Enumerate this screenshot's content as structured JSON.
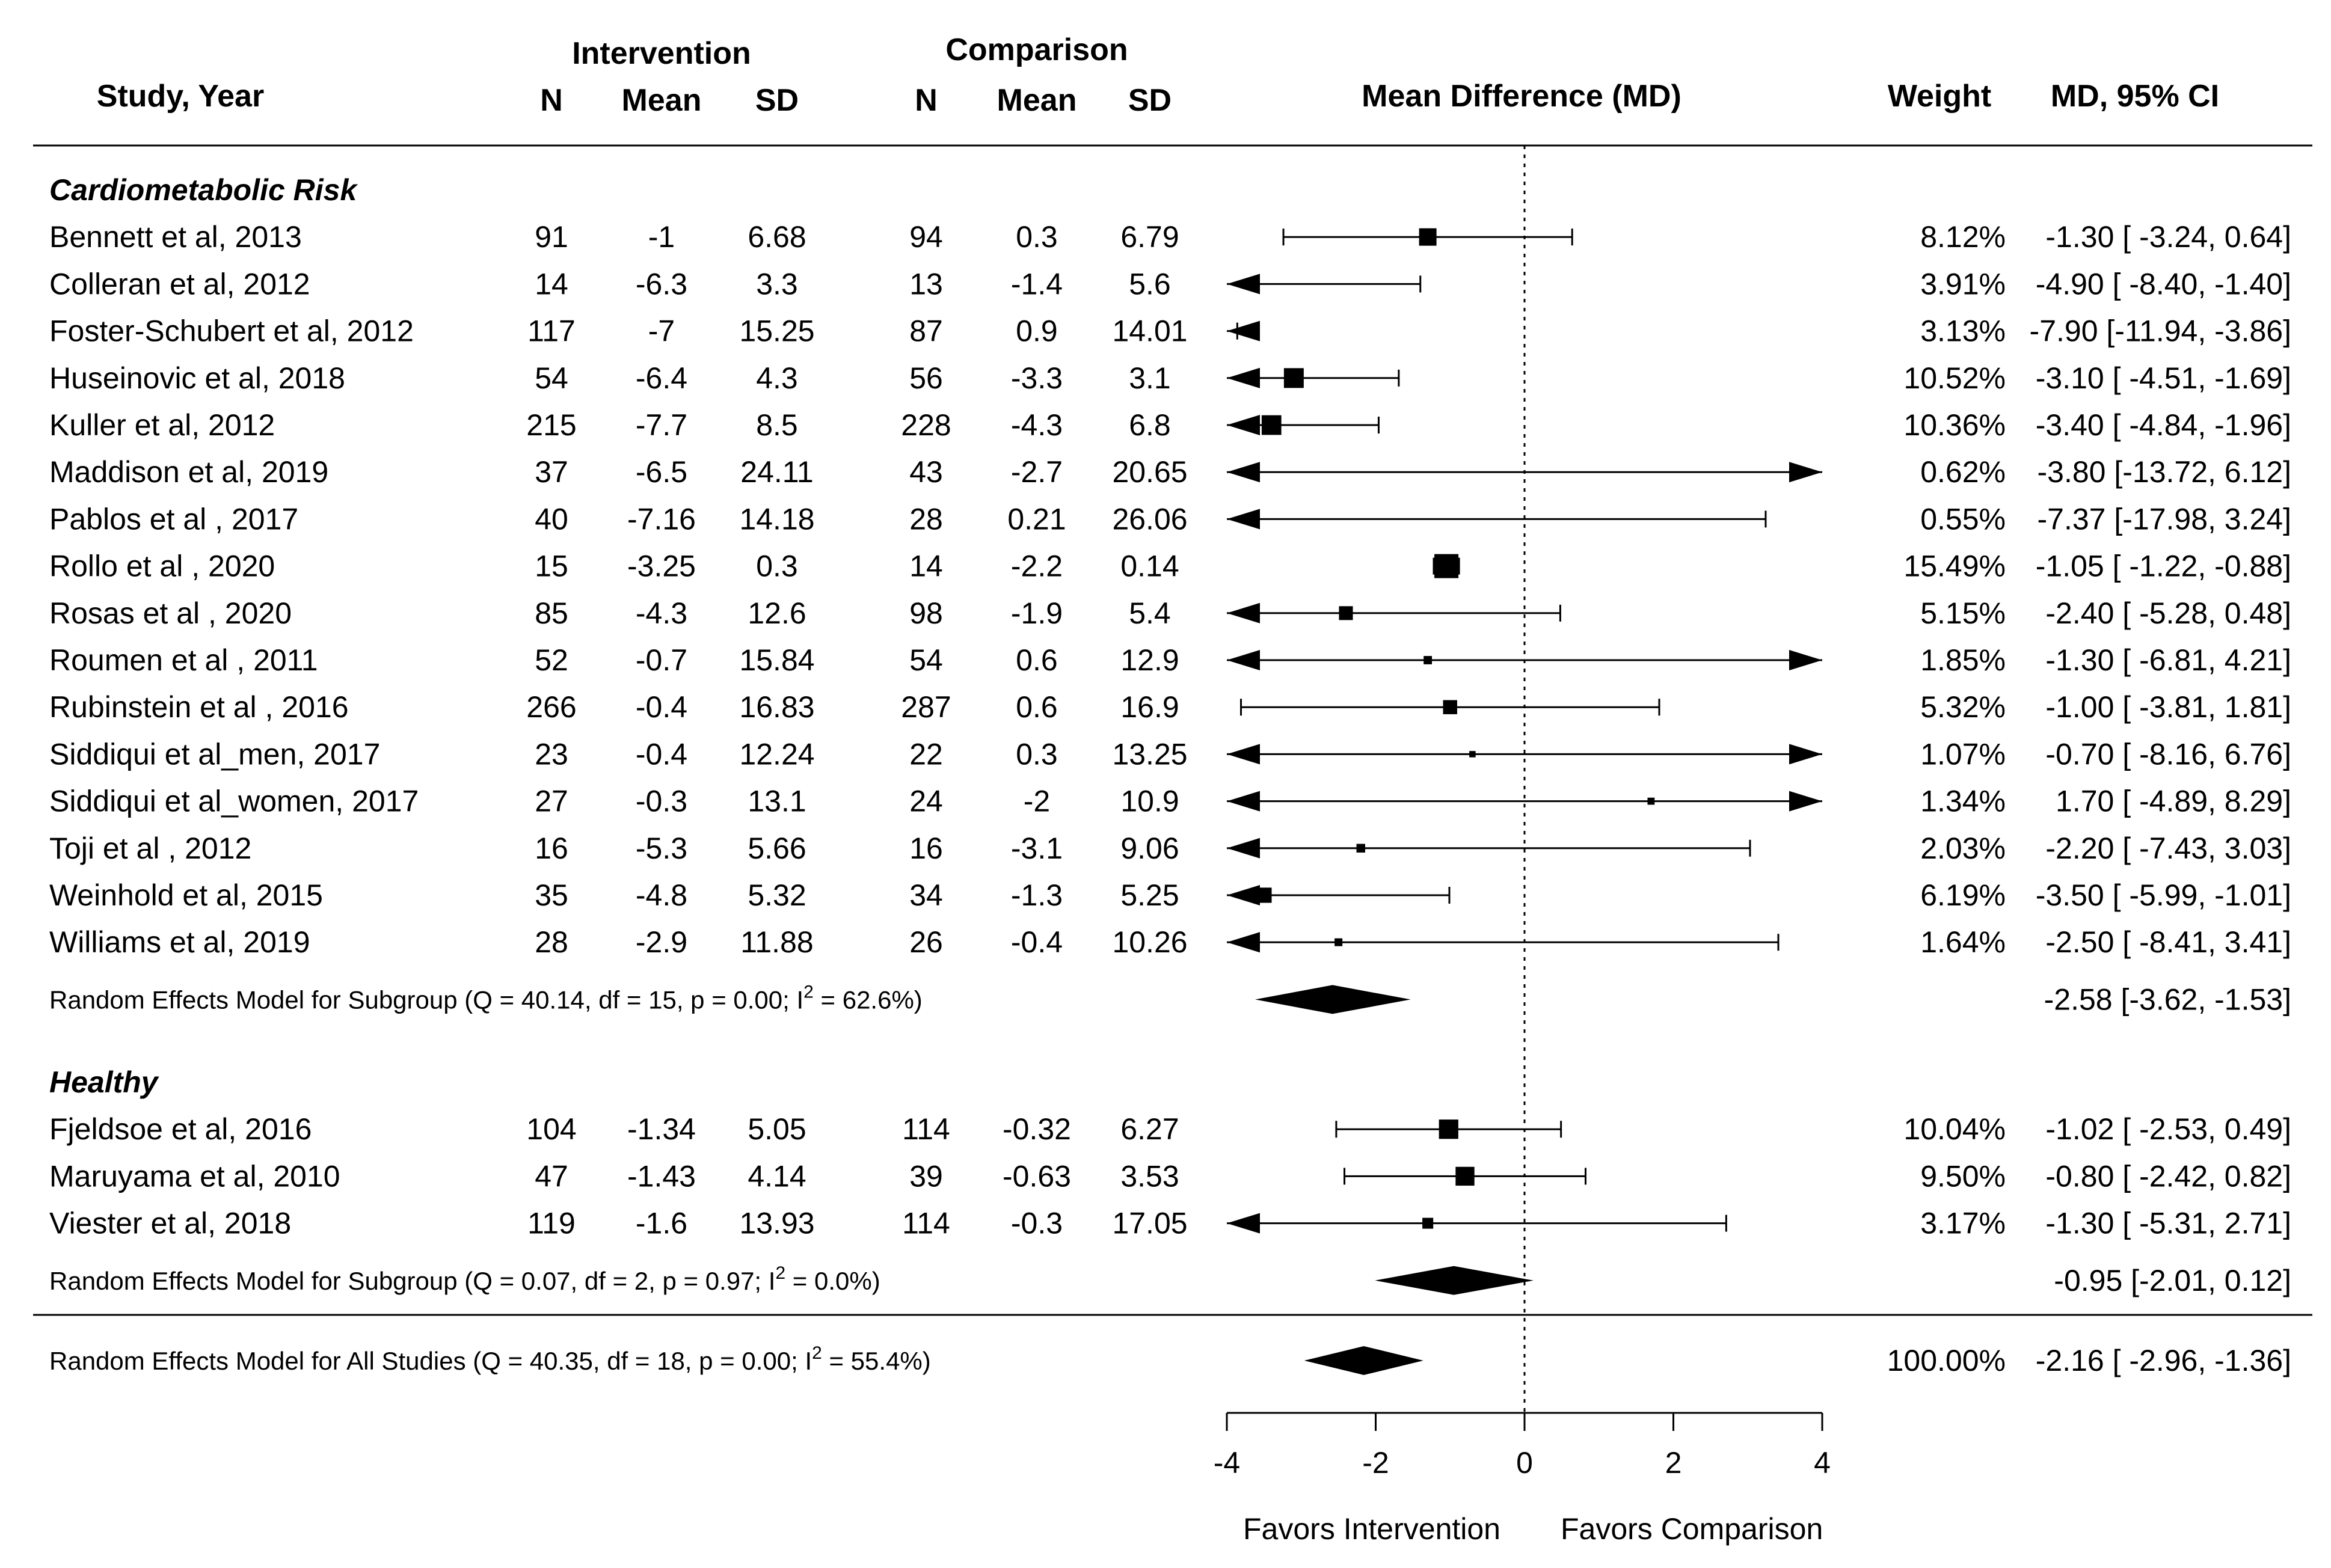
{
  "header": {
    "study_col": "Study, Year",
    "intervention": "Intervention",
    "comparison": "Comparison",
    "n": "N",
    "mean": "Mean",
    "sd": "SD",
    "md_col": "Mean Difference (MD)",
    "weight": "Weight",
    "ci_col": "MD, 95% CI"
  },
  "chart_data": {
    "type": "forest",
    "title": "",
    "xlabel_left": "Favors Intervention",
    "xlabel_right": "Favors Comparison",
    "xlim": [
      -4,
      4
    ],
    "xticks": [
      -4,
      -2,
      0,
      2,
      4
    ],
    "xtick_labels": [
      "-4",
      "-2",
      "0",
      "2",
      "4"
    ],
    "reference_line": 0,
    "groups": [
      {
        "label": "Cardiometabolic Risk",
        "studies": [
          {
            "study": "Bennett et al, 2013",
            "n1": "91",
            "m1": "-1",
            "sd1": "6.68",
            "n2": "94",
            "m2": "0.3",
            "sd2": "6.79",
            "md": -1.3,
            "lo": -3.24,
            "hi": 0.64,
            "weight_pct": 8.12,
            "weight": "8.12%",
            "ci_text": "-1.30 [ -3.24,  0.64]"
          },
          {
            "study": "Colleran et al, 2012",
            "n1": "14",
            "m1": "-6.3",
            "sd1": "3.3",
            "n2": "13",
            "m2": "-1.4",
            "sd2": "5.6",
            "md": -4.9,
            "lo": -8.4,
            "hi": -1.4,
            "weight_pct": 3.91,
            "weight": "3.91%",
            "ci_text": "-4.90 [ -8.40, -1.40]"
          },
          {
            "study": "Foster-Schubert et al, 2012",
            "n1": "117",
            "m1": "-7",
            "sd1": "15.25",
            "n2": "87",
            "m2": "0.9",
            "sd2": "14.01",
            "md": -7.9,
            "lo": -11.94,
            "hi": -3.86,
            "weight_pct": 3.13,
            "weight": "3.13%",
            "ci_text": "-7.90 [-11.94, -3.86]"
          },
          {
            "study": "Huseinovic et al, 2018",
            "n1": "54",
            "m1": "-6.4",
            "sd1": "4.3",
            "n2": "56",
            "m2": "-3.3",
            "sd2": "3.1",
            "md": -3.1,
            "lo": -4.51,
            "hi": -1.69,
            "weight_pct": 10.52,
            "weight": "10.52%",
            "ci_text": "-3.10 [ -4.51, -1.69]"
          },
          {
            "study": "Kuller et al, 2012",
            "n1": "215",
            "m1": "-7.7",
            "sd1": "8.5",
            "n2": "228",
            "m2": "-4.3",
            "sd2": "6.8",
            "md": -3.4,
            "lo": -4.84,
            "hi": -1.96,
            "weight_pct": 10.36,
            "weight": "10.36%",
            "ci_text": "-3.40 [ -4.84, -1.96]"
          },
          {
            "study": "Maddison et al, 2019",
            "n1": "37",
            "m1": "-6.5",
            "sd1": "24.11",
            "n2": "43",
            "m2": "-2.7",
            "sd2": "20.65",
            "md": -3.8,
            "lo": -13.72,
            "hi": 6.12,
            "weight_pct": 0.62,
            "weight": "0.62%",
            "ci_text": "-3.80 [-13.72,  6.12]"
          },
          {
            "study": "Pablos et al , 2017",
            "n1": "40",
            "m1": "-7.16",
            "sd1": "14.18",
            "n2": "28",
            "m2": "0.21",
            "sd2": "26.06",
            "md": -7.37,
            "lo": -17.98,
            "hi": 3.24,
            "weight_pct": 0.55,
            "weight": "0.55%",
            "ci_text": "-7.37 [-17.98,  3.24]"
          },
          {
            "study": "Rollo et al , 2020",
            "n1": "15",
            "m1": "-3.25",
            "sd1": "0.3",
            "n2": "14",
            "m2": "-2.2",
            "sd2": "0.14",
            "md": -1.05,
            "lo": -1.22,
            "hi": -0.88,
            "weight_pct": 15.49,
            "weight": "15.49%",
            "ci_text": "-1.05 [ -1.22, -0.88]"
          },
          {
            "study": "Rosas et al , 2020",
            "n1": "85",
            "m1": "-4.3",
            "sd1": "12.6",
            "n2": "98",
            "m2": "-1.9",
            "sd2": "5.4",
            "md": -2.4,
            "lo": -5.28,
            "hi": 0.48,
            "weight_pct": 5.15,
            "weight": "5.15%",
            "ci_text": "-2.40 [ -5.28,  0.48]"
          },
          {
            "study": "Roumen et al , 2011",
            "n1": "52",
            "m1": "-0.7",
            "sd1": "15.84",
            "n2": "54",
            "m2": "0.6",
            "sd2": "12.9",
            "md": -1.3,
            "lo": -6.81,
            "hi": 4.21,
            "weight_pct": 1.85,
            "weight": "1.85%",
            "ci_text": "-1.30 [ -6.81,  4.21]"
          },
          {
            "study": "Rubinstein et al , 2016",
            "n1": "266",
            "m1": "-0.4",
            "sd1": "16.83",
            "n2": "287",
            "m2": "0.6",
            "sd2": "16.9",
            "md": -1.0,
            "lo": -3.81,
            "hi": 1.81,
            "weight_pct": 5.32,
            "weight": "5.32%",
            "ci_text": "-1.00 [ -3.81,  1.81]"
          },
          {
            "study": "Siddiqui et al_men, 2017",
            "n1": "23",
            "m1": "-0.4",
            "sd1": "12.24",
            "n2": "22",
            "m2": "0.3",
            "sd2": "13.25",
            "md": -0.7,
            "lo": -8.16,
            "hi": 6.76,
            "weight_pct": 1.07,
            "weight": "1.07%",
            "ci_text": "-0.70 [ -8.16,  6.76]"
          },
          {
            "study": "Siddiqui et al_women, 2017",
            "n1": "27",
            "m1": "-0.3",
            "sd1": "13.1",
            "n2": "24",
            "m2": "-2",
            "sd2": "10.9",
            "md": 1.7,
            "lo": -4.89,
            "hi": 8.29,
            "weight_pct": 1.34,
            "weight": "1.34%",
            "ci_text": " 1.70 [ -4.89,  8.29]"
          },
          {
            "study": "Toji et al , 2012",
            "n1": "16",
            "m1": "-5.3",
            "sd1": "5.66",
            "n2": "16",
            "m2": "-3.1",
            "sd2": "9.06",
            "md": -2.2,
            "lo": -7.43,
            "hi": 3.03,
            "weight_pct": 2.03,
            "weight": "2.03%",
            "ci_text": "-2.20 [ -7.43,  3.03]"
          },
          {
            "study": "Weinhold et al, 2015",
            "n1": "35",
            "m1": "-4.8",
            "sd1": "5.32",
            "n2": "34",
            "m2": "-1.3",
            "sd2": "5.25",
            "md": -3.5,
            "lo": -5.99,
            "hi": -1.01,
            "weight_pct": 6.19,
            "weight": "6.19%",
            "ci_text": "-3.50 [ -5.99, -1.01]"
          },
          {
            "study": "Williams et al, 2019",
            "n1": "28",
            "m1": "-2.9",
            "sd1": "11.88",
            "n2": "26",
            "m2": "-0.4",
            "sd2": "10.26",
            "md": -2.5,
            "lo": -8.41,
            "hi": 3.41,
            "weight_pct": 1.64,
            "weight": "1.64%",
            "ci_text": "-2.50 [ -8.41,  3.41]"
          }
        ],
        "summary": {
          "label_pre": "Random Effects Model for Subgroup (Q = 40.14, df = 15, p = 0.00; I",
          "label_sup": "2",
          "label_post": " = 62.6%)",
          "md": -2.58,
          "lo": -3.62,
          "hi": -1.53,
          "ci_text": "-2.58 [-3.62, -1.53]"
        }
      },
      {
        "label": "Healthy",
        "studies": [
          {
            "study": "Fjeldsoe et al, 2016",
            "n1": "104",
            "m1": "-1.34",
            "sd1": "5.05",
            "n2": "114",
            "m2": "-0.32",
            "sd2": "6.27",
            "md": -1.02,
            "lo": -2.53,
            "hi": 0.49,
            "weight_pct": 10.04,
            "weight": "10.04%",
            "ci_text": "-1.02 [ -2.53,  0.49]"
          },
          {
            "study": "Maruyama et al, 2010",
            "n1": "47",
            "m1": "-1.43",
            "sd1": "4.14",
            "n2": "39",
            "m2": "-0.63",
            "sd2": "3.53",
            "md": -0.8,
            "lo": -2.42,
            "hi": 0.82,
            "weight_pct": 9.5,
            "weight": "9.50%",
            "ci_text": "-0.80 [ -2.42,  0.82]"
          },
          {
            "study": "Viester et al, 2018",
            "n1": "119",
            "m1": "-1.6",
            "sd1": "13.93",
            "n2": "114",
            "m2": "-0.3",
            "sd2": "17.05",
            "md": -1.3,
            "lo": -5.31,
            "hi": 2.71,
            "weight_pct": 3.17,
            "weight": "3.17%",
            "ci_text": "-1.30 [ -5.31,  2.71]"
          }
        ],
        "summary": {
          "label_pre": "Random Effects Model for Subgroup (Q = 0.07, df = 2, p = 0.97; I",
          "label_sup": "2",
          "label_post": " = 0.0%)",
          "md": -0.95,
          "lo": -2.01,
          "hi": 0.12,
          "ci_text": "-0.95 [-2.01, 0.12]"
        }
      }
    ],
    "overall": {
      "label_pre": "Random Effects Model for All Studies (Q = 40.35, df = 18, p = 0.00; I",
      "label_sup": "2",
      "label_post": " = 55.4%)",
      "md": -2.16,
      "lo": -2.96,
      "hi": -1.36,
      "weight": "100.00%",
      "ci_text": "-2.16 [ -2.96, -1.36]"
    }
  }
}
